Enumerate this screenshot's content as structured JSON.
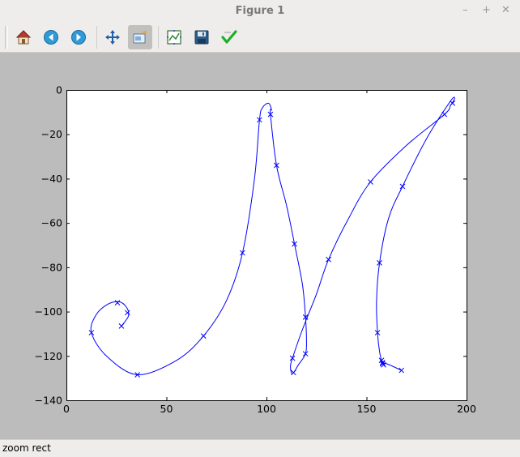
{
  "window": {
    "title": "Figure 1",
    "controls": [
      "–",
      "+",
      "✕"
    ]
  },
  "toolbar": {
    "buttons": [
      {
        "name": "home",
        "icon": "home-icon"
      },
      {
        "name": "back",
        "icon": "arrow-left-icon"
      },
      {
        "name": "forward",
        "icon": "arrow-right-icon"
      },
      {
        "name": "pan",
        "icon": "move-arrows-icon"
      },
      {
        "name": "zoom",
        "icon": "zoom-rect-icon",
        "active": true
      },
      {
        "name": "subplots",
        "icon": "subplots-icon"
      },
      {
        "name": "save",
        "icon": "floppy-disk-icon"
      },
      {
        "name": "edit",
        "icon": "checkmark-icon"
      }
    ]
  },
  "status": {
    "text": "zoom rect"
  },
  "chart_data": {
    "type": "line",
    "title": "",
    "xlabel": "",
    "ylabel": "",
    "xlim": [
      0,
      200
    ],
    "ylim": [
      -140,
      0
    ],
    "xticks": [
      "0",
      "50",
      "100",
      "150",
      "200"
    ],
    "yticks": [
      "0",
      "−20",
      "−40",
      "−60",
      "−80",
      "−100",
      "−120",
      "−140"
    ],
    "grid": false,
    "line_color": "#0000ff",
    "marker": "x",
    "series": [
      {
        "markers": [
          [
            27.5,
            -106.5
          ],
          [
            30.5,
            -100.5
          ],
          [
            25.5,
            -96
          ],
          [
            12.5,
            -109.5
          ],
          [
            35.5,
            -128.5
          ],
          [
            68.5,
            -111
          ],
          [
            88,
            -73.5
          ],
          [
            96.5,
            -13.5
          ],
          [
            102,
            -11
          ],
          [
            105,
            -34
          ],
          [
            114,
            -69.5
          ],
          [
            119.5,
            -102.5
          ],
          [
            119.5,
            -119
          ],
          [
            113,
            -121
          ],
          [
            113.5,
            -127.5
          ],
          [
            131,
            -76.5
          ],
          [
            152,
            -41.5
          ],
          [
            189,
            -11
          ],
          [
            193,
            -6
          ],
          [
            168,
            -43.5
          ],
          [
            156.5,
            -78
          ],
          [
            155.5,
            -109.5
          ],
          [
            157.5,
            -122
          ],
          [
            158,
            -123.5
          ],
          [
            158.5,
            -124
          ],
          [
            158,
            -123
          ],
          [
            167.5,
            -126.5
          ]
        ],
        "curve": [
          [
            27.5,
            -106.5
          ],
          [
            31,
            -102
          ],
          [
            30,
            -98
          ],
          [
            26,
            -95.5
          ],
          [
            20,
            -97
          ],
          [
            14.5,
            -102
          ],
          [
            12.5,
            -109.5
          ],
          [
            20,
            -120
          ],
          [
            35.5,
            -128.5
          ],
          [
            55,
            -122
          ],
          [
            68.5,
            -111
          ],
          [
            80,
            -95
          ],
          [
            88,
            -73.5
          ],
          [
            94,
            -40
          ],
          [
            96.5,
            -13.5
          ],
          [
            98,
            -8
          ],
          [
            101,
            -6
          ],
          [
            102.5,
            -9
          ],
          [
            102,
            -11
          ],
          [
            105,
            -34
          ],
          [
            110,
            -52
          ],
          [
            114,
            -69.5
          ],
          [
            118,
            -88
          ],
          [
            119.5,
            -102.5
          ],
          [
            120,
            -113
          ],
          [
            119.5,
            -119
          ],
          [
            116,
            -124
          ],
          [
            113,
            -128
          ],
          [
            112,
            -125
          ],
          [
            113,
            -121
          ],
          [
            118,
            -108
          ],
          [
            125,
            -92
          ],
          [
            131,
            -76.5
          ],
          [
            141,
            -58
          ],
          [
            152,
            -41.5
          ],
          [
            170,
            -25
          ],
          [
            189,
            -11
          ],
          [
            192,
            -7
          ],
          [
            194,
            -4
          ],
          [
            192,
            -5
          ],
          [
            180,
            -22
          ],
          [
            168,
            -43.5
          ],
          [
            161,
            -58
          ],
          [
            156.5,
            -78
          ],
          [
            155,
            -95
          ],
          [
            155.5,
            -109.5
          ],
          [
            156.5,
            -118
          ],
          [
            157.5,
            -122
          ],
          [
            158,
            -123.5
          ],
          [
            160,
            -123.5
          ],
          [
            167.5,
            -126.5
          ]
        ]
      }
    ]
  }
}
